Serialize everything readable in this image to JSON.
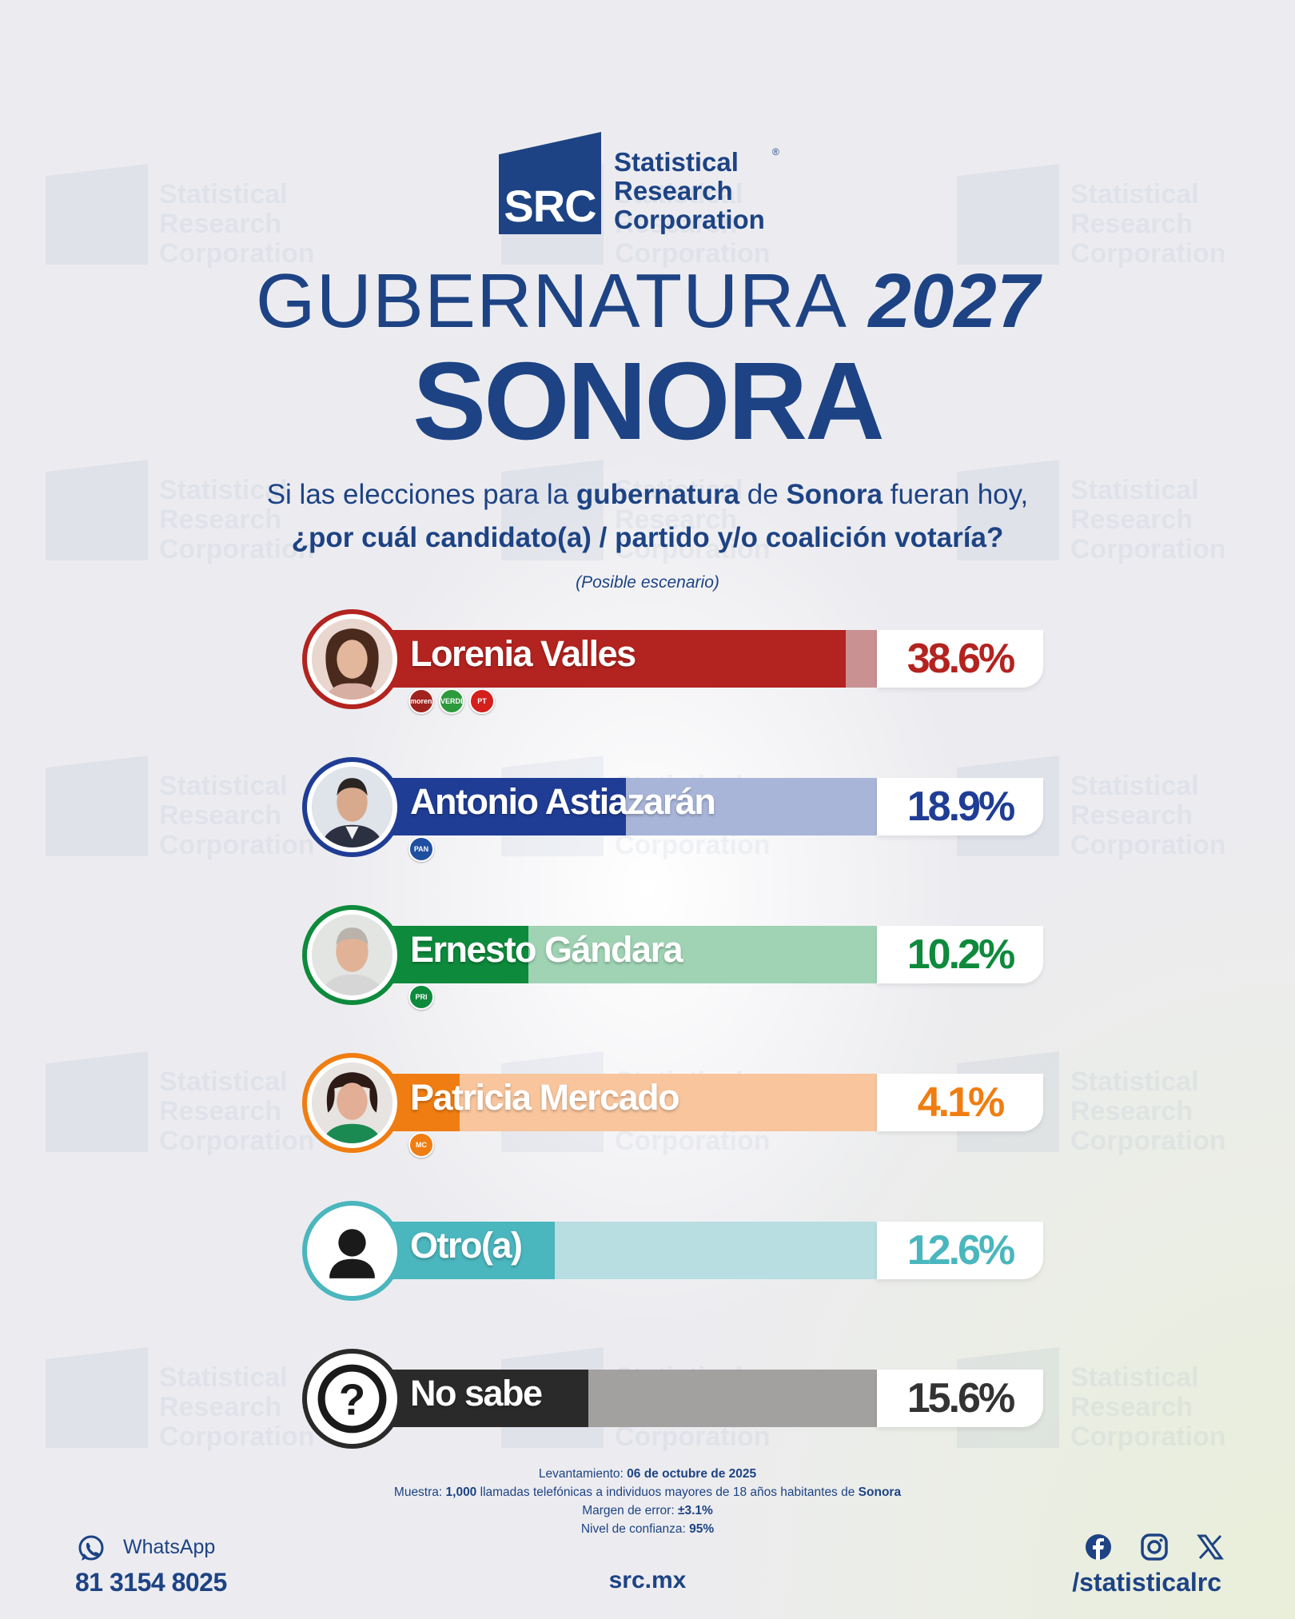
{
  "brand": {
    "abbr": "SRC",
    "name_line1": "Statistical",
    "name_line2": "Research",
    "name_line3": "Corporation",
    "reg": "®",
    "color": "#1d4384"
  },
  "header": {
    "title_light": "GUBERNATURA",
    "title_year": "2027",
    "state": "SONORA"
  },
  "question": {
    "p1": "Si las elecciones para la ",
    "b1": "gubernatura",
    "p2": " de ",
    "b2": "Sonora",
    "p3": " fueran hoy,",
    "line2": "¿por cuál candidato(a) / partido y/o coalición votaría?",
    "scenario": "(Posible escenario)"
  },
  "chart_data": {
    "type": "bar",
    "unit": "%",
    "categories": [
      "Lorenia Valles",
      "Antonio Astiazarán",
      "Ernesto Gándara",
      "Patricia Mercado",
      "Otro(a)",
      "No sabe"
    ],
    "values": [
      38.6,
      18.9,
      10.2,
      4.1,
      12.6,
      15.6
    ],
    "labels": [
      "38.6%",
      "18.9%",
      "10.2%",
      "4.1%",
      "12.6%",
      "15.6%"
    ],
    "parties": [
      [
        "morena",
        "VERDE",
        "PT"
      ],
      [
        "PAN"
      ],
      [
        "PRI"
      ],
      [
        "MC"
      ],
      [],
      []
    ],
    "colors": {
      "dark": [
        "#b3231f",
        "#1f3d95",
        "#0e8a3c",
        "#f07d11",
        "#4ab6bd",
        "#2b2a2a"
      ],
      "light": [
        "#c99191",
        "#a8b5d8",
        "#9fd3b4",
        "#f8c59d",
        "#b8dee2",
        "#a3a0a0"
      ],
      "text": [
        "#b3231f",
        "#1f3d95",
        "#0e8a3c",
        "#f07d11",
        "#4ab6bd",
        "#333333"
      ]
    },
    "xlim": [
      0,
      40
    ]
  },
  "methodology": {
    "l1_label": "Levantamiento: ",
    "l1_value": "06 de octubre de 2025",
    "l2_label": "Muestra: ",
    "l2_value": "1,000",
    "l2_text": " llamadas telefónicas a individuos mayores de 18 años habitantes de ",
    "l2_state": "Sonora",
    "l3_label": "Margen de error: ",
    "l3_value": "±3.1%",
    "l4_label": "Nivel de confianza: ",
    "l4_value": "95%"
  },
  "footer": {
    "whatsapp_label": "WhatsApp",
    "whatsapp_number": "81 3154 8025",
    "website": "src.mx",
    "social_handle": "/statisticalrc",
    "icons": [
      "whatsapp-icon",
      "facebook-icon",
      "instagram-icon",
      "x-icon"
    ]
  }
}
